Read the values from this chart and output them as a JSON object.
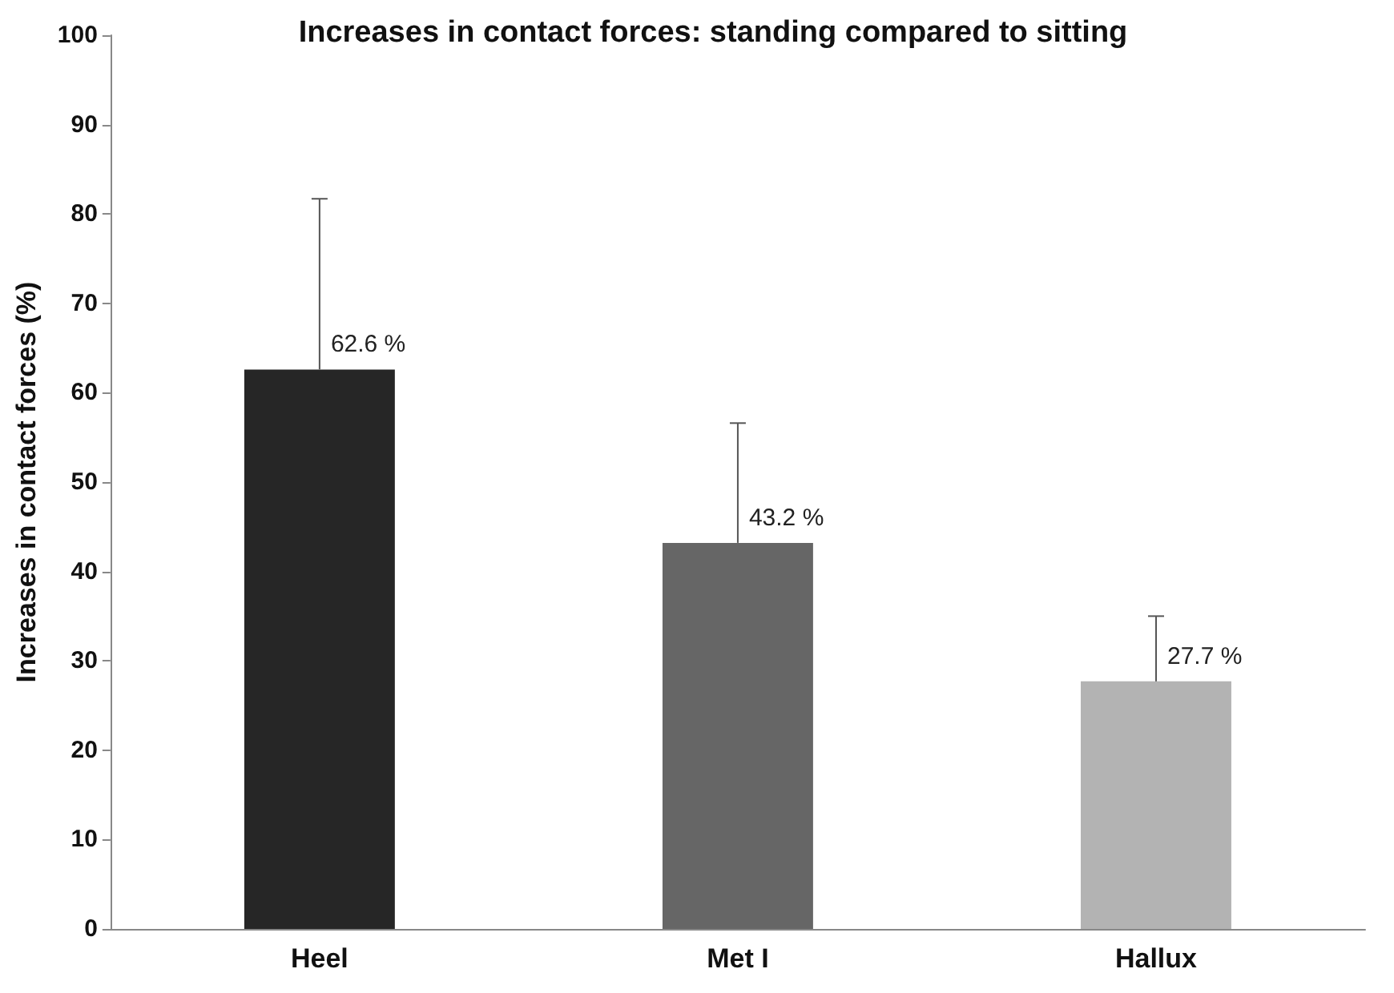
{
  "chart_data": {
    "type": "bar",
    "title": "Increases in contact forces: standing compared to sitting",
    "ylabel": "Increases in contact forces (%)",
    "categories": [
      "Heel",
      "Met I",
      "Hallux"
    ],
    "values": [
      62.6,
      43.2,
      27.7
    ],
    "colors": [
      "#262626",
      "#666666",
      "#b3b3b3"
    ],
    "errors": [
      [
        62.6,
        81.7
      ],
      [
        43.2,
        56.6
      ],
      [
        27.7,
        35.0
      ]
    ],
    "value_labels": [
      "62.6 %",
      "43.2 %",
      "27.7 %"
    ],
    "ylim": [
      0,
      100
    ],
    "yticks": [
      0,
      10,
      20,
      30,
      40,
      50,
      60,
      70,
      80,
      90,
      100
    ],
    "grid": false
  }
}
